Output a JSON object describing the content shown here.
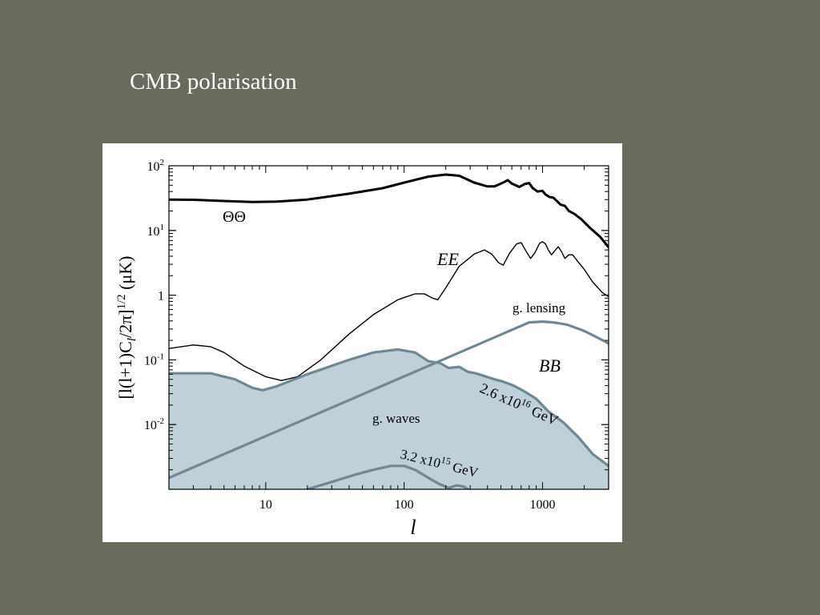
{
  "slide": {
    "title": "CMB polarisation"
  },
  "colors": {
    "background": "#6a6b5d",
    "gw_fill": "#bfd0d9",
    "gw_line": "#6f8894",
    "temperature_line": "#000000"
  },
  "chart_data": {
    "type": "line",
    "xscale": "log",
    "yscale": "log",
    "xlim": [
      2,
      3000
    ],
    "ylim": [
      0.001,
      100
    ],
    "xlabel": "l",
    "ylabel": "[l(l+1)C_l/2π]^1/2 (μK)",
    "xticks": [
      {
        "value": 10,
        "label": "10"
      },
      {
        "value": 100,
        "label": "100"
      },
      {
        "value": 1000,
        "label": "1000"
      }
    ],
    "yticks": [
      {
        "value": 100,
        "base": "10",
        "exp": "2"
      },
      {
        "value": 10,
        "base": "10",
        "exp": "1"
      },
      {
        "value": 1,
        "base": "1",
        "exp": ""
      },
      {
        "value": 0.1,
        "base": "10",
        "exp": "-1"
      },
      {
        "value": 0.01,
        "base": "10",
        "exp": "-2"
      }
    ],
    "series": [
      {
        "key": "tt",
        "style": "thick",
        "points": [
          [
            2,
            30
          ],
          [
            3,
            29.8
          ],
          [
            5,
            28.5
          ],
          [
            8,
            27.5
          ],
          [
            12,
            28
          ],
          [
            20,
            30
          ],
          [
            40,
            37
          ],
          [
            70,
            45
          ],
          [
            100,
            55
          ],
          [
            150,
            68
          ],
          [
            200,
            73
          ],
          [
            250,
            70
          ],
          [
            320,
            55
          ],
          [
            400,
            48
          ],
          [
            450,
            48
          ],
          [
            520,
            55
          ],
          [
            560,
            60
          ],
          [
            600,
            53
          ],
          [
            680,
            47
          ],
          [
            740,
            52
          ],
          [
            800,
            54
          ],
          [
            850,
            45
          ],
          [
            920,
            40
          ],
          [
            1000,
            41
          ],
          [
            1050,
            36
          ],
          [
            1120,
            33
          ],
          [
            1200,
            32
          ],
          [
            1280,
            28
          ],
          [
            1350,
            25
          ],
          [
            1450,
            24
          ],
          [
            1550,
            20
          ],
          [
            1700,
            18
          ],
          [
            1900,
            15
          ],
          [
            2200,
            11
          ],
          [
            2600,
            8
          ],
          [
            3000,
            5.5
          ]
        ]
      },
      {
        "key": "ee",
        "style": "thin",
        "points": [
          [
            2,
            0.15
          ],
          [
            3,
            0.17
          ],
          [
            4,
            0.16
          ],
          [
            5,
            0.13
          ],
          [
            7,
            0.08
          ],
          [
            10,
            0.055
          ],
          [
            13,
            0.048
          ],
          [
            17,
            0.055
          ],
          [
            25,
            0.1
          ],
          [
            40,
            0.25
          ],
          [
            60,
            0.5
          ],
          [
            90,
            0.85
          ],
          [
            120,
            1.05
          ],
          [
            140,
            1.05
          ],
          [
            160,
            0.9
          ],
          [
            175,
            0.85
          ],
          [
            200,
            1.3
          ],
          [
            250,
            2.8
          ],
          [
            320,
            4.3
          ],
          [
            380,
            5
          ],
          [
            430,
            4.3
          ],
          [
            480,
            3.2
          ],
          [
            520,
            2.9
          ],
          [
            580,
            4.5
          ],
          [
            650,
            6.2
          ],
          [
            700,
            6.5
          ],
          [
            760,
            4.8
          ],
          [
            820,
            3.7
          ],
          [
            880,
            4.5
          ],
          [
            950,
            6.3
          ],
          [
            1000,
            6.7
          ],
          [
            1050,
            6.2
          ],
          [
            1100,
            5
          ],
          [
            1160,
            4.2
          ],
          [
            1240,
            5
          ],
          [
            1300,
            5.6
          ],
          [
            1380,
            4.6
          ],
          [
            1450,
            3.7
          ],
          [
            1550,
            4.2
          ],
          [
            1650,
            4.2
          ],
          [
            1800,
            3.3
          ],
          [
            2000,
            2.5
          ],
          [
            2300,
            1.6
          ],
          [
            2700,
            1.1
          ],
          [
            3000,
            0.95
          ]
        ]
      },
      {
        "key": "bb_lensing",
        "style": "blue",
        "points": [
          [
            2,
            0.0015
          ],
          [
            3000,
            0.18
          ],
          [
            800,
            0.38
          ],
          [
            1000,
            0.39
          ],
          [
            1200,
            0.38
          ],
          [
            1500,
            0.35
          ],
          [
            2000,
            0.28
          ],
          [
            2500,
            0.22
          ]
        ]
      },
      {
        "key": "gw_high",
        "style": "blue-fill",
        "points": [
          [
            2,
            0.062
          ],
          [
            4,
            0.062
          ],
          [
            6,
            0.05
          ],
          [
            8,
            0.037
          ],
          [
            9.5,
            0.034
          ],
          [
            12,
            0.039
          ],
          [
            20,
            0.06
          ],
          [
            40,
            0.1
          ],
          [
            60,
            0.13
          ],
          [
            90,
            0.145
          ],
          [
            120,
            0.13
          ],
          [
            150,
            0.095
          ],
          [
            180,
            0.09
          ],
          [
            210,
            0.075
          ],
          [
            250,
            0.078
          ],
          [
            290,
            0.065
          ],
          [
            330,
            0.062
          ],
          [
            380,
            0.056
          ],
          [
            450,
            0.05
          ],
          [
            520,
            0.046
          ],
          [
            620,
            0.04
          ],
          [
            750,
            0.032
          ],
          [
            900,
            0.025
          ],
          [
            1100,
            0.016
          ],
          [
            1400,
            0.011
          ],
          [
            1800,
            0.0065
          ],
          [
            2300,
            0.0035
          ],
          [
            3000,
            0.0023
          ]
        ]
      },
      {
        "key": "gw_low",
        "style": "blue",
        "points": [
          [
            20,
            0.001
          ],
          [
            30,
            0.0013
          ],
          [
            45,
            0.0017
          ],
          [
            60,
            0.002
          ],
          [
            80,
            0.0023
          ],
          [
            100,
            0.0023
          ],
          [
            120,
            0.002
          ],
          [
            150,
            0.0015
          ],
          [
            180,
            0.0012
          ],
          [
            210,
            0.00105
          ],
          [
            240,
            0.00115
          ],
          [
            270,
            0.0011
          ],
          [
            300,
            0.00095
          ]
        ]
      }
    ],
    "annotations": [
      {
        "key": "tt",
        "text": "ΘΘ"
      },
      {
        "key": "ee",
        "text": "EE"
      },
      {
        "key": "lensing",
        "text": "g. lensing"
      },
      {
        "key": "bb",
        "text": "BB"
      },
      {
        "key": "gwaves",
        "text": "g. waves"
      },
      {
        "key": "gw_high",
        "mant": "2.6 x10",
        "exp": "16",
        "unit": " GeV"
      },
      {
        "key": "gw_low",
        "mant": "3.2 x10",
        "exp": "15",
        "unit": " GeV"
      }
    ]
  }
}
